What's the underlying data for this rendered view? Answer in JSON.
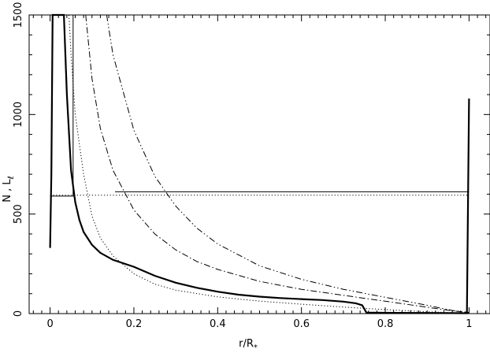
{
  "chart_data": {
    "type": "line",
    "title": "",
    "xlabel": "r/R",
    "xlabel_sub": "*",
    "ylabel": "N , L",
    "ylabel_sub": "ℓ",
    "xlim": [
      -0.05,
      1.05
    ],
    "ylim": [
      0,
      1500
    ],
    "grid": false,
    "x_ticks": [
      0,
      0.2,
      0.4,
      0.6,
      0.8,
      1
    ],
    "x_tick_labels": [
      "0",
      "0.2",
      "0.4",
      "0.6",
      "0.8",
      "1"
    ],
    "y_ticks": [
      0,
      500,
      1000,
      1500
    ],
    "y_tick_labels": [
      "0",
      "500",
      "1000",
      "1500"
    ],
    "series": [
      {
        "style": "thick-solid",
        "points": [
          [
            0.0,
            330
          ],
          [
            0.003,
            700
          ],
          [
            0.006,
            1500
          ],
          [
            0.033,
            1500
          ],
          [
            0.04,
            1100
          ],
          [
            0.05,
            720
          ],
          [
            0.06,
            560
          ],
          [
            0.07,
            470
          ],
          [
            0.08,
            410
          ],
          [
            0.1,
            345
          ],
          [
            0.12,
            305
          ],
          [
            0.15,
            270
          ],
          [
            0.2,
            235
          ],
          [
            0.25,
            190
          ],
          [
            0.3,
            155
          ],
          [
            0.35,
            130
          ],
          [
            0.4,
            110
          ],
          [
            0.45,
            95
          ],
          [
            0.5,
            85
          ],
          [
            0.55,
            78
          ],
          [
            0.6,
            73
          ],
          [
            0.65,
            68
          ],
          [
            0.7,
            60
          ],
          [
            0.73,
            52
          ],
          [
            0.745,
            42
          ],
          [
            0.755,
            5
          ],
          [
            0.8,
            4
          ],
          [
            0.9,
            3
          ],
          [
            0.99,
            2
          ],
          [
            0.995,
            2
          ],
          [
            1.0,
            1080
          ]
        ]
      },
      {
        "style": "thin-solid",
        "points": [
          [
            0.0,
            590
          ],
          [
            0.055,
            590
          ],
          [
            0.055,
            1500
          ]
        ]
      },
      {
        "style": "thin-solid",
        "points": [
          [
            0.155,
            612
          ],
          [
            1.0,
            612
          ]
        ]
      },
      {
        "style": "dotted",
        "points": [
          [
            0.0,
            595
          ],
          [
            1.0,
            595
          ]
        ]
      },
      {
        "style": "dotted",
        "points": [
          [
            0.045,
            1500
          ],
          [
            0.05,
            1300
          ],
          [
            0.06,
            1000
          ],
          [
            0.08,
            700
          ],
          [
            0.1,
            490
          ],
          [
            0.12,
            380
          ],
          [
            0.15,
            290
          ],
          [
            0.2,
            200
          ],
          [
            0.25,
            148
          ],
          [
            0.3,
            118
          ],
          [
            0.4,
            84
          ],
          [
            0.5,
            63
          ],
          [
            0.6,
            47
          ],
          [
            0.7,
            33
          ],
          [
            0.8,
            20
          ],
          [
            0.9,
            9
          ],
          [
            0.97,
            4
          ],
          [
            1.0,
            3
          ]
        ]
      },
      {
        "style": "dash-dot",
        "points": [
          [
            0.085,
            1500
          ],
          [
            0.1,
            1180
          ],
          [
            0.12,
            930
          ],
          [
            0.15,
            720
          ],
          [
            0.2,
            520
          ],
          [
            0.25,
            400
          ],
          [
            0.3,
            320
          ],
          [
            0.35,
            262
          ],
          [
            0.4,
            222
          ],
          [
            0.5,
            162
          ],
          [
            0.6,
            122
          ],
          [
            0.7,
            92
          ],
          [
            0.8,
            62
          ],
          [
            0.9,
            32
          ],
          [
            0.96,
            14
          ],
          [
            1.0,
            5
          ]
        ]
      },
      {
        "style": "dash-dot-dot",
        "points": [
          [
            0.135,
            1500
          ],
          [
            0.15,
            1300
          ],
          [
            0.2,
            920
          ],
          [
            0.25,
            690
          ],
          [
            0.3,
            540
          ],
          [
            0.35,
            430
          ],
          [
            0.4,
            350
          ],
          [
            0.5,
            240
          ],
          [
            0.6,
            172
          ],
          [
            0.7,
            122
          ],
          [
            0.8,
            82
          ],
          [
            0.9,
            42
          ],
          [
            0.96,
            16
          ],
          [
            1.0,
            6
          ]
        ]
      }
    ]
  }
}
